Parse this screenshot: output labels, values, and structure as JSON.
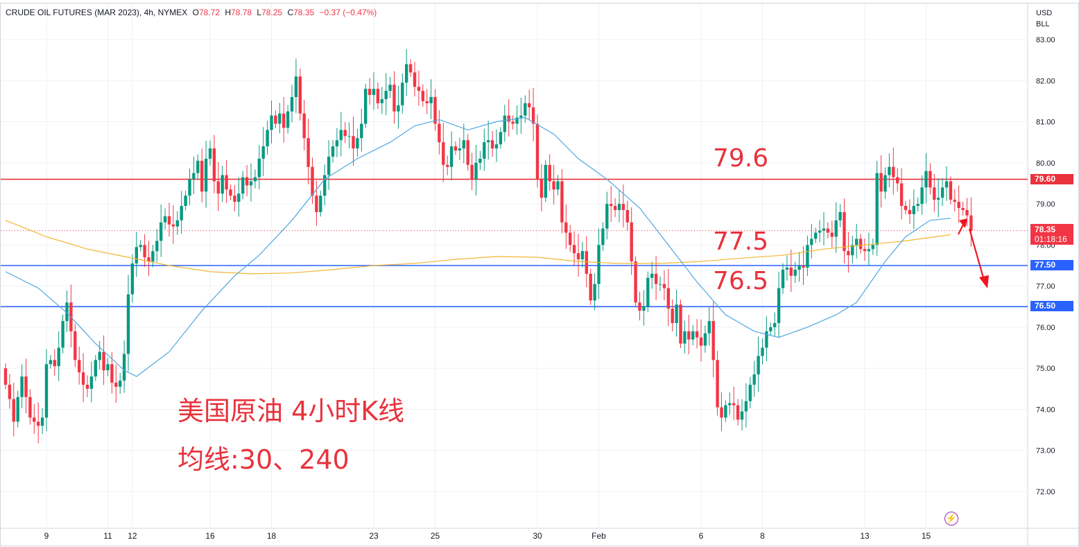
{
  "legend": {
    "symbol": "CRUDE OIL FUTURES (MAR 2023), 4h, NYMEX",
    "open_label": "O",
    "open": "78.72",
    "high_label": "H",
    "high": "78.78",
    "low_label": "L",
    "low": "78.25",
    "close_label": "C",
    "close": "78.35",
    "change": "−0.37 (−0.47%)"
  },
  "currency": "USD",
  "unit": "BLL",
  "last_price_tag": {
    "price": "78.35",
    "countdown": "01:18:16"
  },
  "level_tags": {
    "upper": "79.60",
    "mid": "77.50",
    "lower": "76.50"
  },
  "annotations": {
    "level_upper": "79.6",
    "level_mid": "77.5",
    "level_lower": "76.5",
    "title_line1": "美国原油 4小时K线",
    "title_line2": "均线:30、240"
  },
  "colors": {
    "up": "#089981",
    "down": "#f23645",
    "ma30": "#4fa7e0",
    "ma240": "#f2b631",
    "resistance_line": "#e8323c",
    "support_line": "#2962ff",
    "arrow": "#f0141e",
    "grid": "#eef0f4"
  },
  "icons": {
    "alert": "lightning-icon"
  },
  "chart_data": {
    "type": "candlestick",
    "y_ticks": [
      "83.00",
      "82.00",
      "81.00",
      "80.00",
      "79.00",
      "78.00",
      "77.00",
      "76.00",
      "75.00",
      "74.00",
      "73.00",
      "72.00"
    ],
    "ylim": [
      71.6,
      83.3
    ],
    "x_ticks": [
      {
        "label": "9",
        "i": 10
      },
      {
        "label": "11",
        "i": 25
      },
      {
        "label": "12",
        "i": 31
      },
      {
        "label": "16",
        "i": 50
      },
      {
        "label": "18",
        "i": 65
      },
      {
        "label": "23",
        "i": 90
      },
      {
        "label": "25",
        "i": 105
      },
      {
        "label": "30",
        "i": 130
      },
      {
        "label": "Feb",
        "i": 145
      },
      {
        "label": "6",
        "i": 170
      },
      {
        "label": "8",
        "i": 185
      },
      {
        "label": "13",
        "i": 210
      },
      {
        "label": "15",
        "i": 225
      }
    ],
    "horizontal_levels": [
      79.6,
      77.5,
      76.5
    ],
    "last_close": 78.35,
    "closes": [
      74.6,
      74.25,
      73.7,
      74.3,
      74.8,
      74.3,
      73.8,
      73.7,
      73.6,
      73.8,
      75.1,
      75.2,
      75.05,
      75.5,
      76.15,
      76.6,
      75.9,
      75.2,
      74.9,
      74.6,
      74.5,
      74.8,
      75.2,
      75.4,
      74.95,
      75.1,
      74.65,
      74.55,
      74.7,
      75.35,
      76.8,
      77.55,
      77.95,
      78.0,
      77.7,
      77.6,
      77.85,
      78.1,
      78.55,
      78.7,
      78.5,
      78.45,
      78.6,
      78.95,
      79.2,
      79.6,
      79.75,
      80.05,
      79.3,
      80.1,
      80.35,
      79.55,
      79.25,
      79.7,
      79.35,
      79.2,
      79.05,
      79.25,
      79.65,
      79.45,
      79.55,
      79.65,
      80.1,
      80.4,
      80.8,
      81.15,
      80.95,
      81.2,
      80.85,
      81.25,
      81.6,
      82.1,
      81.2,
      80.6,
      79.9,
      79.2,
      78.8,
      79.2,
      79.7,
      80.15,
      80.4,
      80.55,
      80.8,
      80.65,
      80.65,
      80.35,
      80.6,
      80.95,
      81.8,
      81.65,
      81.8,
      81.45,
      81.55,
      81.75,
      81.9,
      81.25,
      81.4,
      81.95,
      82.4,
      82.2,
      81.85,
      81.75,
      81.5,
      81.45,
      81.6,
      80.95,
      80.5,
      79.95,
      79.9,
      80.4,
      80.3,
      80.35,
      80.55,
      79.95,
      79.6,
      80.0,
      80.1,
      80.5,
      80.55,
      80.35,
      80.45,
      80.75,
      81.15,
      81.0,
      80.95,
      81.1,
      81.15,
      81.45,
      81.35,
      80.95,
      79.6,
      79.15,
      79.95,
      79.55,
      79.35,
      79.55,
      78.55,
      78.3,
      78.0,
      77.8,
      77.65,
      77.85,
      77.3,
      76.65,
      77.05,
      78.0,
      78.4,
      79.0,
      78.95,
      78.85,
      79.0,
      78.85,
      78.55,
      77.6,
      76.6,
      76.4,
      76.5,
      77.2,
      77.3,
      77.05,
      77.05,
      76.95,
      76.45,
      76.1,
      76.55,
      75.6,
      75.9,
      75.7,
      75.9,
      75.75,
      75.55,
      75.85,
      76.15,
      75.2,
      74.05,
      73.8,
      74.1,
      74.15,
      74.1,
      73.75,
      73.95,
      74.2,
      74.6,
      74.85,
      75.3,
      75.5,
      75.9,
      76.0,
      76.1,
      76.95,
      77.4,
      77.45,
      77.25,
      77.4,
      77.5,
      77.45,
      78.0,
      78.15,
      78.3,
      78.35,
      78.4,
      78.3,
      78.2,
      78.6,
      78.8,
      77.85,
      77.75,
      78.0,
      78.15,
      77.9,
      77.85,
      77.9,
      78.0,
      79.75,
      79.3,
      79.7,
      79.9,
      79.65,
      79.5,
      78.95,
      78.85,
      78.75,
      78.95,
      79.0,
      79.4,
      79.8,
      79.4,
      79.1,
      79.15,
      79.4,
      79.55,
      79.1,
      79.05,
      78.9,
      78.85,
      78.72,
      78.35
    ],
    "opens": [
      75.0,
      74.6,
      74.25,
      73.7,
      74.3,
      74.8,
      74.3,
      73.8,
      73.7,
      73.6,
      73.8,
      75.1,
      75.2,
      75.05,
      75.5,
      76.15,
      76.6,
      75.9,
      75.2,
      74.9,
      74.6,
      74.5,
      74.8,
      75.2,
      75.4,
      74.95,
      75.1,
      74.65,
      74.55,
      74.7,
      75.35,
      76.8,
      77.55,
      77.95,
      78.0,
      77.7,
      77.6,
      77.85,
      78.1,
      78.55,
      78.7,
      78.5,
      78.45,
      78.6,
      78.95,
      79.2,
      79.6,
      79.75,
      80.05,
      79.3,
      80.1,
      80.35,
      79.55,
      79.25,
      79.7,
      79.35,
      79.2,
      79.05,
      79.25,
      79.65,
      79.45,
      79.55,
      79.65,
      80.1,
      80.4,
      80.8,
      81.15,
      80.95,
      81.2,
      80.85,
      81.25,
      81.6,
      82.1,
      81.2,
      80.6,
      79.9,
      79.2,
      78.8,
      79.2,
      79.7,
      80.15,
      80.4,
      80.55,
      80.8,
      80.65,
      80.65,
      80.35,
      80.6,
      80.95,
      81.8,
      81.65,
      81.8,
      81.45,
      81.55,
      81.75,
      81.9,
      81.25,
      81.4,
      81.95,
      82.4,
      82.2,
      81.85,
      81.75,
      81.5,
      81.45,
      81.6,
      80.95,
      80.5,
      79.95,
      79.9,
      80.4,
      80.3,
      80.35,
      80.55,
      79.95,
      79.6,
      80.0,
      80.1,
      80.5,
      80.55,
      80.35,
      80.45,
      80.75,
      81.15,
      81.0,
      80.95,
      81.1,
      81.15,
      81.45,
      81.35,
      80.95,
      79.6,
      79.15,
      79.95,
      79.55,
      79.35,
      79.55,
      78.55,
      78.3,
      78.0,
      77.8,
      77.65,
      77.85,
      77.3,
      76.65,
      77.05,
      78.0,
      78.4,
      79.0,
      78.95,
      78.85,
      79.0,
      78.85,
      78.55,
      77.6,
      76.6,
      76.4,
      76.5,
      77.2,
      77.3,
      77.05,
      77.05,
      76.95,
      76.45,
      76.1,
      76.55,
      75.6,
      75.9,
      75.7,
      75.9,
      75.75,
      75.55,
      75.85,
      76.15,
      75.2,
      74.05,
      73.8,
      74.1,
      74.15,
      74.1,
      73.75,
      73.95,
      74.2,
      74.6,
      74.85,
      75.3,
      75.5,
      75.9,
      76.0,
      76.1,
      76.95,
      77.4,
      77.45,
      77.25,
      77.4,
      77.5,
      77.45,
      78.0,
      78.15,
      78.3,
      78.35,
      78.4,
      78.3,
      78.2,
      78.6,
      78.8,
      77.85,
      77.75,
      78.0,
      78.15,
      77.9,
      77.85,
      77.9,
      78.0,
      79.75,
      79.3,
      79.7,
      79.9,
      79.65,
      79.5,
      78.95,
      78.85,
      78.75,
      78.95,
      79.0,
      79.4,
      79.8,
      79.4,
      79.1,
      79.15,
      79.4,
      79.55,
      79.1,
      79.05,
      78.9,
      78.85,
      78.72
    ],
    "ma30": [
      [
        0,
        77.35
      ],
      [
        8,
        76.95
      ],
      [
        15,
        76.35
      ],
      [
        22,
        75.6
      ],
      [
        29,
        74.95
      ],
      [
        32,
        74.8
      ],
      [
        40,
        75.4
      ],
      [
        48,
        76.4
      ],
      [
        56,
        77.25
      ],
      [
        62,
        77.75
      ],
      [
        70,
        78.6
      ],
      [
        78,
        79.6
      ],
      [
        86,
        80.1
      ],
      [
        94,
        80.5
      ],
      [
        100,
        80.9
      ],
      [
        106,
        81.05
      ],
      [
        113,
        80.8
      ],
      [
        120,
        81.0
      ],
      [
        127,
        81.1
      ],
      [
        134,
        80.7
      ],
      [
        140,
        80.1
      ],
      [
        147,
        79.6
      ],
      [
        155,
        78.9
      ],
      [
        162,
        78.0
      ],
      [
        169,
        77.1
      ],
      [
        176,
        76.3
      ],
      [
        183,
        75.9
      ],
      [
        189,
        75.75
      ],
      [
        196,
        76.0
      ],
      [
        203,
        76.3
      ],
      [
        208,
        76.6
      ],
      [
        215,
        77.6
      ],
      [
        220,
        78.2
      ],
      [
        226,
        78.6
      ],
      [
        231,
        78.65
      ]
    ],
    "ma240": [
      [
        0,
        78.6
      ],
      [
        10,
        78.2
      ],
      [
        20,
        77.9
      ],
      [
        30,
        77.7
      ],
      [
        40,
        77.5
      ],
      [
        50,
        77.35
      ],
      [
        60,
        77.3
      ],
      [
        70,
        77.32
      ],
      [
        80,
        77.4
      ],
      [
        90,
        77.5
      ],
      [
        100,
        77.55
      ],
      [
        110,
        77.65
      ],
      [
        120,
        77.72
      ],
      [
        130,
        77.7
      ],
      [
        140,
        77.6
      ],
      [
        150,
        77.55
      ],
      [
        160,
        77.55
      ],
      [
        170,
        77.6
      ],
      [
        180,
        77.68
      ],
      [
        190,
        77.75
      ],
      [
        200,
        77.9
      ],
      [
        210,
        78.0
      ],
      [
        220,
        78.1
      ],
      [
        231,
        78.25
      ]
    ]
  }
}
